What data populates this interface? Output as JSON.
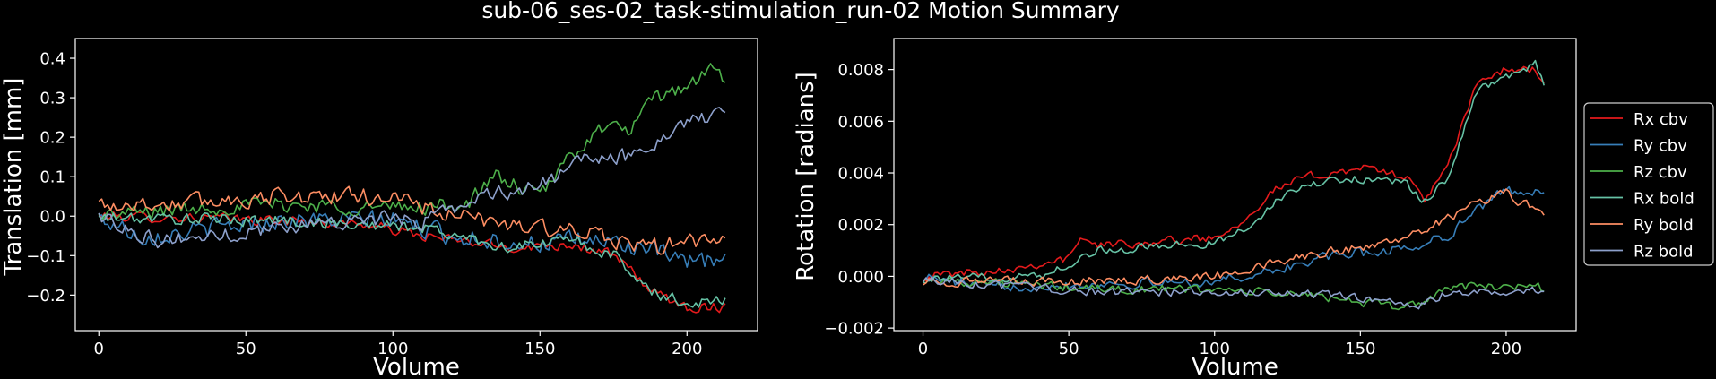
{
  "figure_title": "sub-06_ses-02_task-stimulation_run-02 Motion Summary",
  "legend": {
    "placement": "right",
    "entries": [
      {
        "label": "Rx cbv",
        "color": "#e41a1c"
      },
      {
        "label": "Ry cbv",
        "color": "#377eb8"
      },
      {
        "label": "Rz cbv",
        "color": "#4daf4a"
      },
      {
        "label": "Rx bold",
        "color": "#66c2a5"
      },
      {
        "label": "Ry bold",
        "color": "#fc8d62"
      },
      {
        "label": "Rz bold",
        "color": "#8da0cb"
      }
    ]
  },
  "chart_data": [
    {
      "type": "line",
      "title": "",
      "xlabel": "Volume",
      "ylabel": "Translation [mm]",
      "xlim": [
        -8,
        224
      ],
      "ylim": [
        -0.29,
        0.45
      ],
      "xticks": [
        0,
        50,
        100,
        150,
        200
      ],
      "xtick_labels": [
        "0",
        "50",
        "100",
        "150",
        "200"
      ],
      "yticks": [
        -0.2,
        -0.1,
        0.0,
        0.1,
        0.2,
        0.3,
        0.4
      ],
      "ytick_labels": [
        "−0.2",
        "−0.1",
        "0.0",
        "0.1",
        "0.2",
        "0.3",
        "0.4"
      ],
      "grid": false,
      "n_points": 214,
      "series": [
        {
          "color": "#e41a1c",
          "noise": 0.012,
          "keypoints": [
            [
              0,
              0.0
            ],
            [
              40,
              -0.005
            ],
            [
              90,
              -0.02
            ],
            [
              110,
              -0.05
            ],
            [
              140,
              -0.08
            ],
            [
              160,
              -0.07
            ],
            [
              175,
              -0.1
            ],
            [
              190,
              -0.2
            ],
            [
              200,
              -0.23
            ],
            [
              213,
              -0.23
            ]
          ]
        },
        {
          "color": "#377eb8",
          "noise": 0.022,
          "keypoints": [
            [
              0,
              -0.005
            ],
            [
              15,
              -0.05
            ],
            [
              30,
              -0.04
            ],
            [
              60,
              -0.01
            ],
            [
              100,
              -0.01
            ],
            [
              120,
              -0.05
            ],
            [
              150,
              -0.07
            ],
            [
              170,
              -0.06
            ],
            [
              185,
              -0.08
            ],
            [
              200,
              -0.12
            ],
            [
              213,
              -0.11
            ]
          ]
        },
        {
          "color": "#4daf4a",
          "noise": 0.018,
          "keypoints": [
            [
              0,
              0.0
            ],
            [
              30,
              0.02
            ],
            [
              60,
              0.03
            ],
            [
              100,
              0.02
            ],
            [
              125,
              0.03
            ],
            [
              135,
              0.1
            ],
            [
              150,
              0.05
            ],
            [
              160,
              0.15
            ],
            [
              170,
              0.22
            ],
            [
              180,
              0.22
            ],
            [
              190,
              0.3
            ],
            [
              200,
              0.33
            ],
            [
              210,
              0.38
            ],
            [
              213,
              0.33
            ]
          ]
        },
        {
          "color": "#66c2a5",
          "noise": 0.014,
          "keypoints": [
            [
              0,
              -0.005
            ],
            [
              60,
              -0.01
            ],
            [
              110,
              -0.03
            ],
            [
              140,
              -0.08
            ],
            [
              160,
              -0.06
            ],
            [
              175,
              -0.1
            ],
            [
              190,
              -0.2
            ],
            [
              200,
              -0.22
            ],
            [
              213,
              -0.21
            ]
          ]
        },
        {
          "color": "#fc8d62",
          "noise": 0.02,
          "keypoints": [
            [
              0,
              0.03
            ],
            [
              20,
              0.03
            ],
            [
              60,
              0.05
            ],
            [
              100,
              0.05
            ],
            [
              120,
              0.0
            ],
            [
              140,
              -0.02
            ],
            [
              160,
              -0.04
            ],
            [
              175,
              -0.06
            ],
            [
              190,
              -0.08
            ],
            [
              200,
              -0.06
            ],
            [
              213,
              -0.07
            ]
          ]
        },
        {
          "color": "#8da0cb",
          "noise": 0.018,
          "keypoints": [
            [
              0,
              0.0
            ],
            [
              20,
              -0.06
            ],
            [
              40,
              -0.05
            ],
            [
              80,
              -0.01
            ],
            [
              110,
              -0.01
            ],
            [
              130,
              0.05
            ],
            [
              150,
              0.08
            ],
            [
              165,
              0.14
            ],
            [
              180,
              0.15
            ],
            [
              195,
              0.22
            ],
            [
              205,
              0.25
            ],
            [
              213,
              0.25
            ]
          ]
        }
      ]
    },
    {
      "type": "line",
      "title": "",
      "xlabel": "Volume",
      "ylabel": "Rotation [radians]",
      "xlim": [
        -10,
        224
      ],
      "ylim": [
        -0.0021,
        0.0092
      ],
      "xticks": [
        0,
        50,
        100,
        150,
        200
      ],
      "xtick_labels": [
        "0",
        "50",
        "100",
        "150",
        "200"
      ],
      "yticks": [
        -0.002,
        0.0,
        0.002,
        0.004,
        0.006,
        0.008
      ],
      "ytick_labels": [
        "−0.002",
        "0.000",
        "0.002",
        "0.004",
        "0.006",
        "0.008"
      ],
      "grid": false,
      "n_points": 214,
      "series": [
        {
          "name": "Rx cbv",
          "color": "#e41a1c",
          "noise": 0.00015,
          "keypoints": [
            [
              0,
              0.0
            ],
            [
              30,
              0.0003
            ],
            [
              50,
              0.0007
            ],
            [
              55,
              0.0015
            ],
            [
              60,
              0.0012
            ],
            [
              100,
              0.0015
            ],
            [
              110,
              0.0022
            ],
            [
              120,
              0.0033
            ],
            [
              130,
              0.0038
            ],
            [
              150,
              0.0042
            ],
            [
              165,
              0.0039
            ],
            [
              172,
              0.003
            ],
            [
              180,
              0.0042
            ],
            [
              190,
              0.0075
            ],
            [
              200,
              0.008
            ],
            [
              210,
              0.008
            ],
            [
              213,
              0.0075
            ]
          ]
        },
        {
          "name": "Ry cbv",
          "color": "#377eb8",
          "noise": 0.00018,
          "keypoints": [
            [
              0,
              0.0
            ],
            [
              20,
              -0.0004
            ],
            [
              60,
              -0.0003
            ],
            [
              100,
              -0.0002
            ],
            [
              120,
              0.0002
            ],
            [
              140,
              0.0008
            ],
            [
              160,
              0.001
            ],
            [
              170,
              0.0012
            ],
            [
              180,
              0.0016
            ],
            [
              190,
              0.0026
            ],
            [
              200,
              0.0033
            ],
            [
              213,
              0.0033
            ]
          ]
        },
        {
          "name": "Rz cbv",
          "color": "#4daf4a",
          "noise": 0.00016,
          "keypoints": [
            [
              0,
              -0.0001
            ],
            [
              30,
              -0.0003
            ],
            [
              60,
              -0.0005
            ],
            [
              100,
              -0.0005
            ],
            [
              140,
              -0.0008
            ],
            [
              160,
              -0.0012
            ],
            [
              172,
              -0.001
            ],
            [
              180,
              -0.0004
            ],
            [
              200,
              -0.0004
            ],
            [
              210,
              -0.0003
            ],
            [
              213,
              -0.0005
            ]
          ]
        },
        {
          "name": "Rx bold",
          "color": "#66c2a5",
          "noise": 0.00015,
          "keypoints": [
            [
              0,
              -0.0001
            ],
            [
              40,
              0.0
            ],
            [
              50,
              0.0005
            ],
            [
              60,
              0.001
            ],
            [
              100,
              0.0013
            ],
            [
              110,
              0.0018
            ],
            [
              120,
              0.0028
            ],
            [
              130,
              0.0035
            ],
            [
              150,
              0.0038
            ],
            [
              165,
              0.0036
            ],
            [
              172,
              0.0029
            ],
            [
              180,
              0.0038
            ],
            [
              190,
              0.0072
            ],
            [
              200,
              0.0077
            ],
            [
              210,
              0.0082
            ],
            [
              213,
              0.0074
            ]
          ]
        },
        {
          "name": "Ry bold",
          "color": "#fc8d62",
          "noise": 0.00016,
          "keypoints": [
            [
              0,
              -0.0002
            ],
            [
              20,
              -0.0002
            ],
            [
              60,
              -0.0002
            ],
            [
              100,
              0.0
            ],
            [
              130,
              0.0008
            ],
            [
              150,
              0.0011
            ],
            [
              165,
              0.0015
            ],
            [
              175,
              0.002
            ],
            [
              190,
              0.0028
            ],
            [
              200,
              0.0032
            ],
            [
              213,
              0.0024
            ]
          ]
        },
        {
          "name": "Rz bold",
          "color": "#8da0cb",
          "noise": 0.00014,
          "keypoints": [
            [
              0,
              -0.0001
            ],
            [
              30,
              -0.0004
            ],
            [
              60,
              -0.0006
            ],
            [
              100,
              -0.0006
            ],
            [
              140,
              -0.0007
            ],
            [
              160,
              -0.001
            ],
            [
              172,
              -0.0011
            ],
            [
              180,
              -0.0006
            ],
            [
              200,
              -0.0006
            ],
            [
              213,
              -0.0005
            ]
          ]
        }
      ]
    }
  ]
}
